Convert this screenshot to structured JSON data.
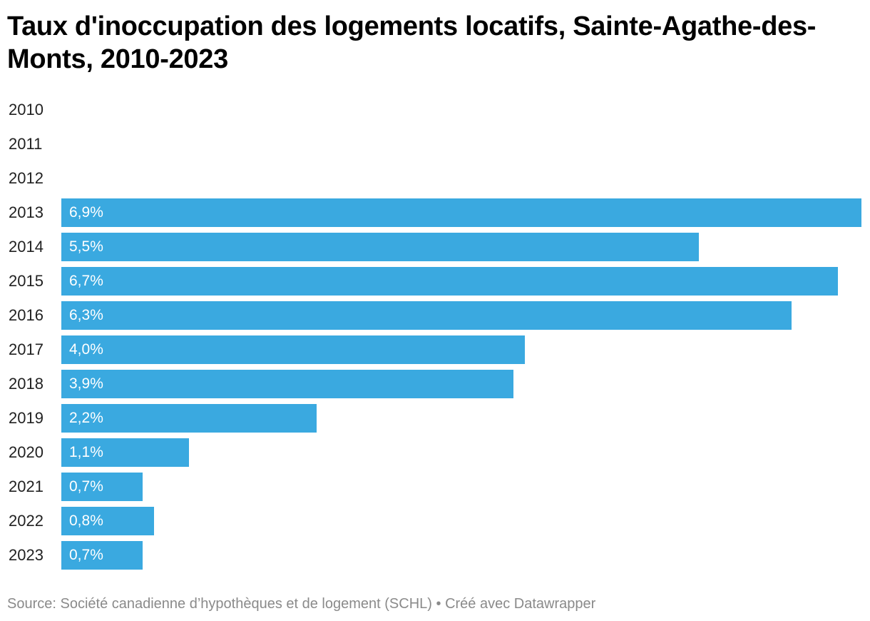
{
  "title": "Taux d'inoccupation des logements locatifs, Sainte-Agathe-des-Monts, 2010-2023",
  "footer": {
    "source": "Source: Société canadienne d’hypothèques et de logement (SCHL)",
    "separator": " • ",
    "credit": "Créé avec Datawrapper"
  },
  "colors": {
    "bar": "#3aa9e0",
    "bar_label": "#ffffff",
    "category_label": "#222222",
    "footer": "#8a8a8a"
  },
  "chart_data": {
    "type": "bar",
    "orientation": "horizontal",
    "title": "Taux d'inoccupation des logements locatifs, Sainte-Agathe-des-Monts, 2010-2023",
    "xlabel": "",
    "ylabel": "",
    "unit": "%",
    "xlim": [
      0,
      6.9
    ],
    "grid": false,
    "legend": "none",
    "categories": [
      "2010",
      "2011",
      "2012",
      "2013",
      "2014",
      "2015",
      "2016",
      "2017",
      "2018",
      "2019",
      "2020",
      "2021",
      "2022",
      "2023"
    ],
    "values": [
      null,
      null,
      null,
      6.9,
      5.5,
      6.7,
      6.3,
      4.0,
      3.9,
      2.2,
      1.1,
      0.7,
      0.8,
      0.7
    ],
    "value_labels": [
      "",
      "",
      "",
      "6,9%",
      "5,5%",
      "6,7%",
      "6,3%",
      "4,0%",
      "3,9%",
      "2,2%",
      "1,1%",
      "0,7%",
      "0,8%",
      "0,7%"
    ]
  }
}
